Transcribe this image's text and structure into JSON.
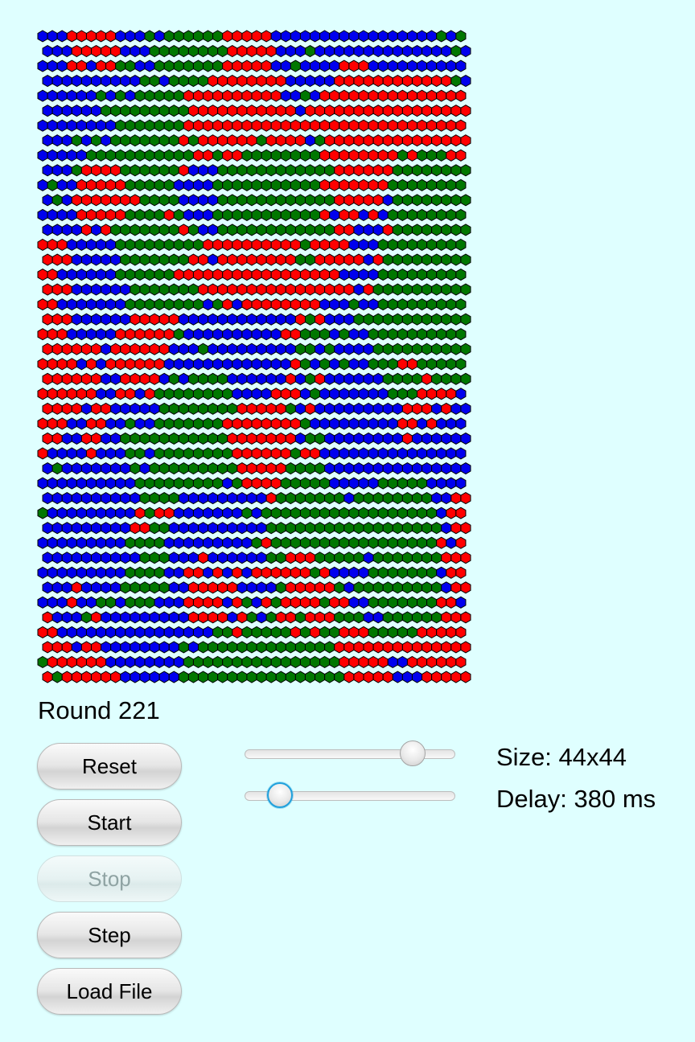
{
  "colors": {
    "red": "#ff0000",
    "green": "#007700",
    "blue": "#0000ee",
    "outline": "#000000",
    "background": "#dfffff"
  },
  "grid": {
    "rows": 44,
    "cols": 44
  },
  "status": {
    "round_prefix": "Round",
    "round_number": "221",
    "round_text": "Round 221"
  },
  "buttons": {
    "reset": "Reset",
    "start": "Start",
    "stop": "Stop",
    "step": "Step",
    "load_file": "Load File"
  },
  "sliders": {
    "size_position": 0.84,
    "delay_position": 0.12
  },
  "info": {
    "size_text": "Size: 44x44",
    "delay_text": "Delay: 380 ms"
  }
}
